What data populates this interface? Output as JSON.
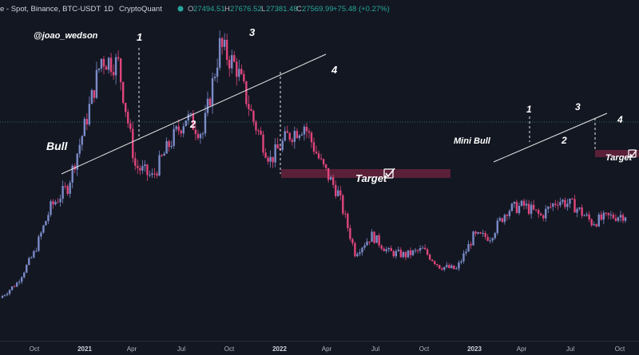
{
  "header": {
    "title": "e - Spot, Binance, BTC-USDT",
    "interval": "1D",
    "source": "CryptoQuant",
    "open_label": "O",
    "open": "27494.51",
    "high_label": "H",
    "high": "27676.52",
    "low_label": "L",
    "low": "27381.48",
    "close_label": "C",
    "close": "27569.99",
    "change": "+75.48 (+0.27%)",
    "status_color": "#26a69a"
  },
  "colors": {
    "background": "#131722",
    "up": "#26a69a",
    "down": "#ef5350",
    "candle_up": "#7b8bc8",
    "candle_down": "#e0457b",
    "target_zone": "#5a2038",
    "trendline": "#e6e6e6",
    "last_price_line": "#1f6f6a"
  },
  "annotations": {
    "author": "@joao_wedson",
    "bull": "Bull",
    "mini_bull": "Mini Bull",
    "target_main": "Target",
    "target_right": "Target",
    "waves": [
      "1",
      "2",
      "3",
      "4",
      "1",
      "2",
      "3",
      "4"
    ]
  },
  "chart_data": {
    "type": "candlestick",
    "title": "",
    "xlabel": "",
    "ylabel": "",
    "x_ticks": [
      "Oct",
      "2021",
      "Apr",
      "Jul",
      "Oct",
      "2022",
      "Apr",
      "Jul",
      "Oct",
      "2023",
      "Apr",
      "Jul",
      "Oct"
    ],
    "grid": false,
    "legend": "none",
    "approx_close_path": [
      {
        "period": "2020-09",
        "close": 10800
      },
      {
        "period": "2020-10",
        "close": 13800
      },
      {
        "period": "2020-11",
        "close": 19700
      },
      {
        "period": "2020-12",
        "close": 29000
      },
      {
        "period": "2021-01",
        "close": 33100
      },
      {
        "period": "2021-02",
        "close": 45100
      },
      {
        "period": "2021-03",
        "close": 58800
      },
      {
        "period": "2021-04",
        "close": 57700
      },
      {
        "period": "2021-05",
        "close": 37300
      },
      {
        "period": "2021-06",
        "close": 35000
      },
      {
        "period": "2021-07",
        "close": 41500
      },
      {
        "period": "2021-08",
        "close": 47100
      },
      {
        "period": "2021-09",
        "close": 43800
      },
      {
        "period": "2021-10",
        "close": 61300
      },
      {
        "period": "2021-11",
        "close": 57000
      },
      {
        "period": "2021-12",
        "close": 46300
      },
      {
        "period": "2022-01",
        "close": 38500
      },
      {
        "period": "2022-02",
        "close": 43200
      },
      {
        "period": "2022-03",
        "close": 45500
      },
      {
        "period": "2022-04",
        "close": 37700
      },
      {
        "period": "2022-05",
        "close": 31800
      },
      {
        "period": "2022-06",
        "close": 19900
      },
      {
        "period": "2022-07",
        "close": 23300
      },
      {
        "period": "2022-08",
        "close": 20000
      },
      {
        "period": "2022-09",
        "close": 19400
      },
      {
        "period": "2022-10",
        "close": 20500
      },
      {
        "period": "2022-11",
        "close": 17200
      },
      {
        "period": "2022-12",
        "close": 16500
      },
      {
        "period": "2023-01",
        "close": 23100
      },
      {
        "period": "2023-02",
        "close": 23100
      },
      {
        "period": "2023-03",
        "close": 28500
      },
      {
        "period": "2023-04",
        "close": 29300
      },
      {
        "period": "2023-05",
        "close": 27200
      },
      {
        "period": "2023-06",
        "close": 30500
      },
      {
        "period": "2023-07",
        "close": 29200
      },
      {
        "period": "2023-08",
        "close": 26000
      },
      {
        "period": "2023-09",
        "close": 27000
      },
      {
        "period": "2023-10",
        "close": 27570
      }
    ],
    "last_price": 27569.99
  }
}
